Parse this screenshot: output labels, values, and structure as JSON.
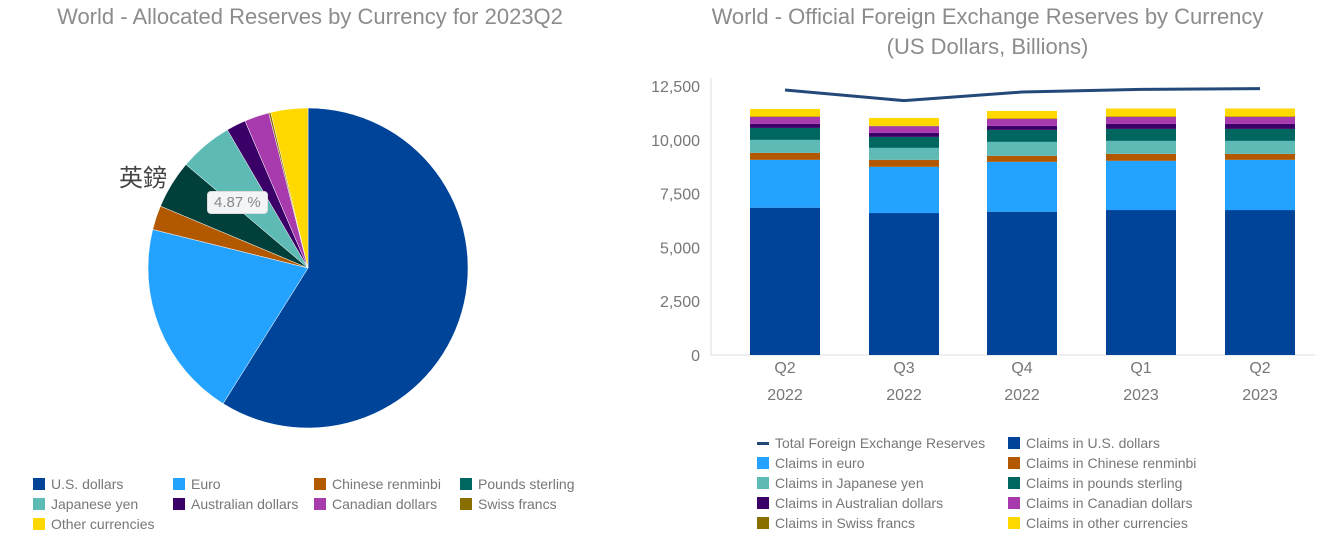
{
  "colors": {
    "usd": "#00449a",
    "eur": "#23a3ff",
    "rmb": "#b25900",
    "gbp": "#006660",
    "gbp_pie": "#003f3a",
    "jpy": "#5ebab5",
    "aud": "#3b0067",
    "cad": "#a73bae",
    "chf": "#886f00",
    "other": "#ffd800",
    "total": "#23497a"
  },
  "chart_data": [
    {
      "type": "pie",
      "title": "World - Allocated Reserves by Currency for 2023Q2",
      "slices": [
        {
          "name": "U.S. dollars",
          "value": 58.9,
          "color_key": "usd"
        },
        {
          "name": "Euro",
          "value": 19.97,
          "color_key": "eur"
        },
        {
          "name": "Chinese renminbi",
          "value": 2.45,
          "color_key": "rmb"
        },
        {
          "name": "Pounds sterling",
          "value": 4.87,
          "color_key": "gbp_pie"
        },
        {
          "name": "Japanese yen",
          "value": 5.4,
          "color_key": "jpy"
        },
        {
          "name": "Australian dollars",
          "value": 1.97,
          "color_key": "aud"
        },
        {
          "name": "Canadian dollars",
          "value": 2.5,
          "color_key": "cad"
        },
        {
          "name": "Swiss francs",
          "value": 0.2,
          "color_key": "chf"
        },
        {
          "name": "Other currencies",
          "value": 3.74,
          "color_key": "other"
        }
      ],
      "tooltip": "4.87 %",
      "hover_label": "英鎊",
      "legend_position": "bottom"
    },
    {
      "type": "bar",
      "stacked": true,
      "title": "World - Official Foreign Exchange Reserves by Currency",
      "subtitle": "(US Dollars, Billions)",
      "categories": [
        [
          "Q2",
          "2022"
        ],
        [
          "Q3",
          "2022"
        ],
        [
          "Q4",
          "2022"
        ],
        [
          "Q1",
          "2023"
        ],
        [
          "Q2",
          "2023"
        ]
      ],
      "ylim": [
        0,
        12500
      ],
      "yticks": [
        "0",
        "2,500",
        "5,000",
        "7,500",
        "10,000",
        "12,500"
      ],
      "ytick_values": [
        0,
        2500,
        5000,
        7500,
        10000,
        12500
      ],
      "grid": false,
      "legend_position": "bottom",
      "line_series": {
        "name": "Total Foreign Exchange Reserves",
        "color_key": "total",
        "values": [
          12314,
          11819,
          12221,
          12345,
          12376
        ]
      },
      "series": [
        {
          "name": "Claims in U.S. dollars",
          "color_key": "usd",
          "values": [
            6845,
            6597,
            6659,
            6736,
            6736
          ]
        },
        {
          "name": "Claims in euro",
          "color_key": "eur",
          "values": [
            2224,
            2148,
            2317,
            2287,
            2333
          ]
        },
        {
          "name": "Claims in Chinese renminbi",
          "color_key": "rmb",
          "values": [
            325,
            324,
            279,
            324,
            278
          ]
        },
        {
          "name": "Claims in Japanese yen",
          "color_key": "jpy",
          "values": [
            602,
            556,
            648,
            603,
            603
          ]
        },
        {
          "name": "Claims in pounds sterling",
          "color_key": "gbp",
          "values": [
            556,
            510,
            557,
            556,
            556
          ]
        },
        {
          "name": "Claims in Australian dollars",
          "color_key": "aud",
          "values": [
            186,
            186,
            185,
            232,
            232
          ]
        },
        {
          "name": "Claims in Canadian dollars",
          "color_key": "cad",
          "values": [
            324,
            309,
            325,
            324,
            324
          ]
        },
        {
          "name": "Claims in Swiss francs",
          "color_key": "chf",
          "values": [
            20,
            20,
            20,
            20,
            20
          ]
        },
        {
          "name": "Claims in other currencies",
          "color_key": "other",
          "values": [
            351,
            366,
            350,
            373,
            373
          ]
        }
      ]
    }
  ]
}
